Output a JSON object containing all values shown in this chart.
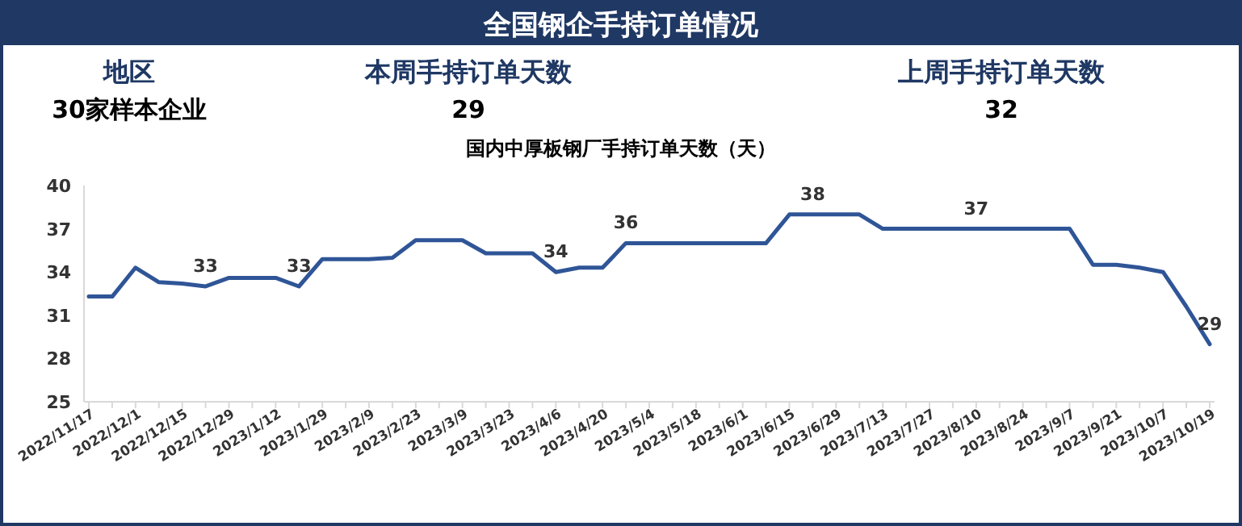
{
  "chart_data": [
    {
      "type": "other",
      "title": "全国钢企手持订单情况",
      "annotations": [
        "地区",
        "本周手持订单天数",
        "上周手持订单天数",
        "30家样本企业",
        "29",
        "32"
      ]
    },
    {
      "type": "line",
      "title": "国内中厚板钢厂手持订单天数（天）",
      "categories": [
        "2022/11/17",
        null,
        "2022/12/1",
        null,
        "2022/12/15",
        null,
        "2022/12/29",
        null,
        "2023/1/12",
        null,
        "2023/1/29",
        null,
        "2023/2/9",
        null,
        "2023/2/23",
        null,
        "2023/3/9",
        null,
        "2023/3/23",
        null,
        "2023/4/6",
        null,
        "2023/4/20",
        null,
        "2023/5/4",
        null,
        "2023/5/18",
        null,
        "2023/6/1",
        null,
        "2023/6/15",
        null,
        "2023/6/29",
        null,
        "2023/7/13",
        null,
        "2023/7/27",
        null,
        "2023/8/10",
        null,
        "2023/8/24",
        null,
        "2023/9/7",
        null,
        "2023/9/21",
        null,
        "2023/10/7",
        null,
        "2023/10/19"
      ],
      "series": [
        {
          "color": "#2f5597",
          "values": [
            32.3,
            32.3,
            34.3,
            33.3,
            33.2,
            33,
            33.6,
            33.6,
            33.6,
            33,
            34.9,
            34.9,
            34.9,
            35,
            36.2,
            36.2,
            36.2,
            35.3,
            35.3,
            35.3,
            34,
            34.3,
            34.3,
            36,
            36,
            36,
            36,
            36,
            36,
            36,
            38,
            38,
            38,
            38,
            37,
            37,
            37,
            37,
            37,
            37,
            37,
            37,
            37,
            34.5,
            34.5,
            34.3,
            34,
            31.6,
            29
          ],
          "value_labels": [
            null,
            null,
            null,
            null,
            null,
            "33",
            null,
            null,
            null,
            "33",
            null,
            null,
            null,
            null,
            null,
            null,
            null,
            null,
            null,
            null,
            "34",
            null,
            null,
            "36",
            null,
            null,
            null,
            null,
            null,
            null,
            null,
            "38",
            null,
            null,
            null,
            null,
            null,
            null,
            "37",
            null,
            null,
            null,
            null,
            null,
            null,
            null,
            null,
            null,
            "29"
          ]
        }
      ],
      "ylim": [
        25,
        40
      ],
      "yticks": [
        25,
        28,
        31,
        34,
        37,
        40
      ],
      "grid": false,
      "marker": "none",
      "line_style": "solid"
    }
  ]
}
